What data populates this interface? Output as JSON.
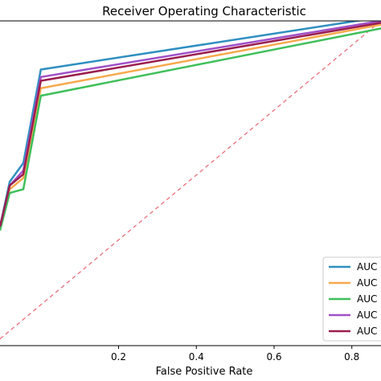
{
  "chart_data": {
    "type": "line",
    "title": "Receiver Operating Characteristic",
    "xlabel": "False Positive Rate",
    "ylabel": "",
    "xlim": [
      -0.105,
      0.875
    ],
    "ylim": [
      0.112,
      0.98
    ],
    "x_ticks": [
      0.2,
      0.4,
      0.6,
      0.8
    ],
    "x_tick_labels": [
      "0.2",
      "0.4",
      "0.6",
      "0.8"
    ],
    "grid": false,
    "legend_position": "bottom-right",
    "series": [
      {
        "name": "AUC",
        "color": "#2f8fc0",
        "x": [
          -0.105,
          -0.08,
          -0.045,
          0.0,
          0.875
        ],
        "y": [
          0.43,
          0.55,
          0.6,
          0.85,
          0.99
        ]
      },
      {
        "name": "AUC",
        "color": "#f7a94d",
        "x": [
          -0.105,
          -0.08,
          -0.045,
          0.0,
          0.875
        ],
        "y": [
          0.43,
          0.53,
          0.56,
          0.8,
          0.97
        ]
      },
      {
        "name": "AUC",
        "color": "#3fbf5a",
        "x": [
          -0.105,
          -0.08,
          -0.045,
          0.0,
          0.875
        ],
        "y": [
          0.42,
          0.52,
          0.53,
          0.78,
          0.96
        ]
      },
      {
        "name": "AUC",
        "color": "#a050c8",
        "x": [
          -0.105,
          -0.08,
          -0.045,
          0.0,
          0.875
        ],
        "y": [
          0.43,
          0.54,
          0.58,
          0.83,
          0.98
        ]
      },
      {
        "name": "AUC",
        "color": "#9b1d4f",
        "x": [
          -0.105,
          -0.08,
          -0.045,
          0.0,
          0.875
        ],
        "y": [
          0.43,
          0.54,
          0.57,
          0.82,
          0.975
        ]
      }
    ],
    "reference_line": {
      "color": "#e8707a",
      "style": "dashed",
      "x": [
        -0.105,
        0.875
      ],
      "y": [
        0.13,
        0.98
      ]
    }
  }
}
